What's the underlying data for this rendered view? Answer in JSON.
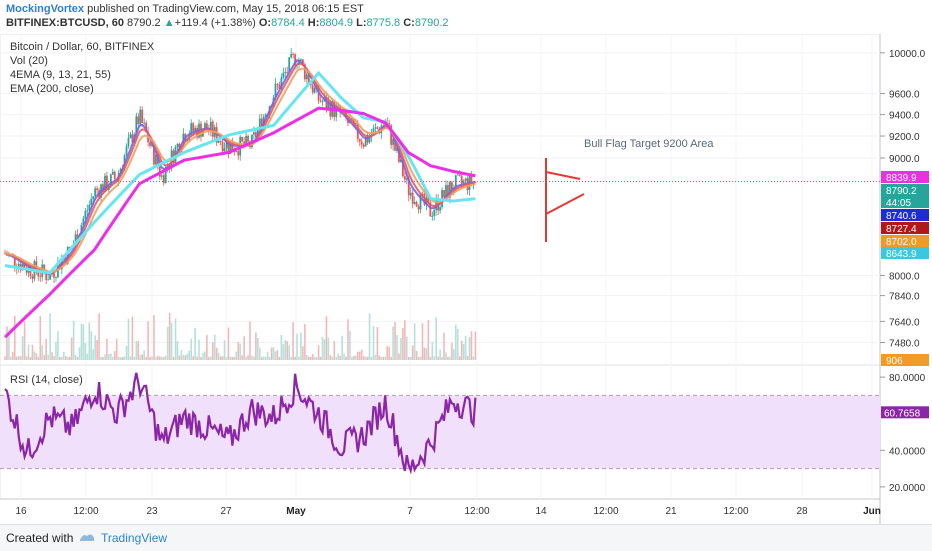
{
  "header": {
    "author": "MockingVortex",
    "published": "published on TradingView.com, May 15, 2018 06:15 EST",
    "symbol": "BITFINEX:BTCUSD, 60",
    "last": "8790.2",
    "change_arrow": "▲",
    "change": "+119.4 (+1.38%)",
    "o_label": "O:",
    "o": "8784.4",
    "h_label": "H:",
    "h": "8804.9",
    "l_label": "L:",
    "l": "8775.8",
    "c_label": "C:",
    "c": "8790.2"
  },
  "legend": {
    "title": "Bitcoin / Dollar, 60, BITFINEX",
    "vol": "Vol (20)",
    "ema4": "4EMA (9, 13, 21, 55)",
    "ema200": "EMA (200, close)",
    "rsi": "RSI (14, close)"
  },
  "annotation": {
    "text": "Bull Flag Target 9200 Area",
    "color": "#e53935"
  },
  "footer": {
    "created": "Created with",
    "brand": "TradingView"
  },
  "colors": {
    "ema200": "#ee2de6",
    "ema55": "#66e6f0",
    "ema21": "#f0a060",
    "ema13": "#e85a5a",
    "ema9": "#7a5ff0",
    "rsi": "#8b26a8",
    "rsi_band": "#f1e0fb",
    "candle_up": "#26a69a",
    "candle_down": "#ef5350",
    "volume": "#f2b8b8"
  },
  "chart_data": [
    {
      "type": "line",
      "title": "Bitcoin / Dollar, 60, BITFINEX",
      "y_scale": "log",
      "ylim": [
        7350,
        10150
      ],
      "y_ticks": [
        "10000.0",
        "9600.0",
        "9400.0",
        "9200.0",
        "9000.0",
        "8000.0",
        "7840.0",
        "7640.0",
        "7480.0"
      ],
      "x_ticks": [
        "16",
        "12:00",
        "23",
        "27",
        "May",
        "7",
        "12:00",
        "14",
        "12:00",
        "21",
        "12:00",
        "28",
        "Jun"
      ],
      "price_labels": [
        {
          "text": "8839.9",
          "color": "#ee2de6"
        },
        {
          "text": "8790.2",
          "color": "#26a69a"
        },
        {
          "text": "44:05",
          "color": "#26a69a"
        },
        {
          "text": "8740.6",
          "color": "#1e2bd9"
        },
        {
          "text": "8727.4",
          "color": "#b01919"
        },
        {
          "text": "8702.0",
          "color": "#f09a28"
        },
        {
          "text": "8643.9",
          "color": "#3cc7e0"
        },
        {
          "text": "906",
          "color": "#f09a28"
        }
      ],
      "series": [
        {
          "name": "Price (close)",
          "x": [
            0,
            4,
            8,
            12,
            16,
            20,
            24,
            28,
            32,
            36,
            40,
            44,
            48,
            52,
            56,
            60,
            64,
            68,
            72,
            76,
            80,
            84,
            88,
            92,
            96,
            100
          ],
          "values": [
            8180,
            8060,
            8000,
            8230,
            8700,
            8830,
            9380,
            8830,
            9230,
            9280,
            9100,
            9120,
            9600,
            9980,
            9550,
            9400,
            9150,
            9330,
            8720,
            8530,
            8760,
            8790,
            null,
            null,
            null,
            null
          ]
        },
        {
          "name": "EMA 200",
          "x": [
            0,
            8,
            16,
            24,
            32,
            40,
            48,
            56,
            60,
            64,
            68,
            72,
            76,
            80,
            84
          ],
          "values": [
            7520,
            7850,
            8210,
            8770,
            8980,
            9050,
            9230,
            9460,
            9440,
            9410,
            9320,
            9050,
            8930,
            8880,
            8840
          ]
        },
        {
          "name": "EMA 55",
          "x": [
            0,
            8,
            16,
            24,
            32,
            40,
            48,
            56,
            60,
            64,
            68,
            72,
            76,
            80,
            84
          ],
          "values": [
            8080,
            8020,
            8440,
            8850,
            9050,
            9210,
            9300,
            9800,
            9560,
            9370,
            9330,
            9020,
            8640,
            8620,
            8640
          ]
        }
      ]
    },
    {
      "type": "line",
      "title": "RSI (14, close)",
      "ylim": [
        15,
        85
      ],
      "y_ticks": [
        "80.0000",
        "40.0000",
        "20.0000"
      ],
      "bands": [
        30,
        70
      ],
      "last_value": "60.7658",
      "series": [
        {
          "name": "RSI",
          "x": [
            0,
            4,
            8,
            12,
            16,
            20,
            24,
            28,
            32,
            36,
            40,
            44,
            48,
            52,
            56,
            60,
            64,
            68,
            72,
            76,
            80,
            84
          ],
          "values": [
            72,
            38,
            58,
            52,
            74,
            60,
            78,
            44,
            58,
            52,
            45,
            62,
            58,
            75,
            60,
            42,
            48,
            66,
            28,
            44,
            68,
            61
          ]
        }
      ]
    }
  ]
}
